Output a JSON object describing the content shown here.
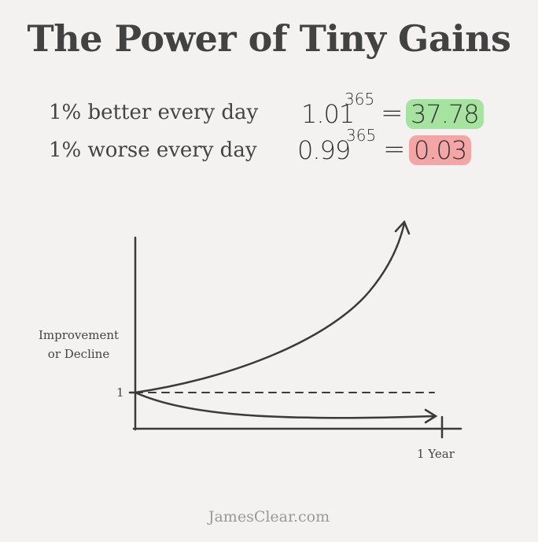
{
  "title": "The Power of Tiny Gains",
  "rows": [
    {
      "label": "1% better every day",
      "base": "1.01",
      "exponent": "365",
      "equals": "=",
      "result": "37.78",
      "highlight": "#a6e3a0"
    },
    {
      "label": "1% worse every day",
      "base": "0.99",
      "exponent": "365",
      "equals": "=",
      "result": "0.03",
      "highlight": "#f4a5a5"
    }
  ],
  "diagram": {
    "y_axis_label_line1": "Improvement",
    "y_axis_label_line2": "or Decline",
    "y_tick_label": "1",
    "x_tick_label": "1 Year",
    "curves": [
      "improvement-curve-up",
      "baseline-dashed",
      "decline-curve-down"
    ]
  },
  "footer": "JamesClear.com"
}
